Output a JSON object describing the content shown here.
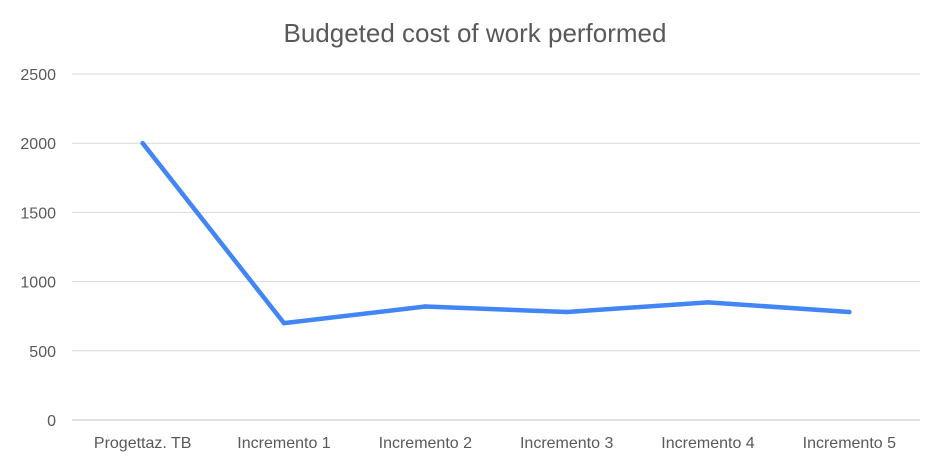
{
  "chart_data": {
    "type": "line",
    "title": "Budgeted cost of work performed",
    "categories": [
      "Progettaz. TB",
      "Incremento 1",
      "Incremento 2",
      "Incremento 3",
      "Incremento 4",
      "Incremento 5"
    ],
    "series": [
      {
        "values": [
          2000,
          700,
          820,
          780,
          850,
          780
        ],
        "color": "#4285f4"
      }
    ],
    "ylim": [
      0,
      2500
    ],
    "yticks": [
      0,
      500,
      1000,
      1500,
      2000,
      2500
    ],
    "grid": true,
    "legend": "none"
  }
}
